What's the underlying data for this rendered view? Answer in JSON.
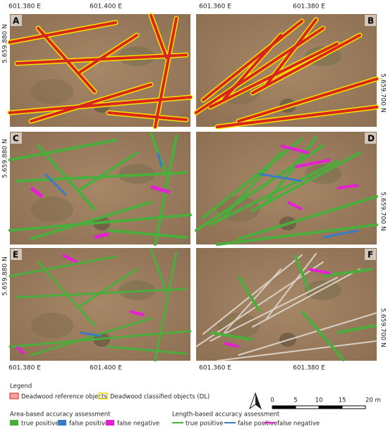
{
  "coordinates": {
    "top": [
      "601.380 E",
      "601.400 E",
      "601.360 E",
      "601.380 E"
    ],
    "bottom": [
      "601.380 E",
      "601.400 E",
      "601.360 E",
      "601.380 E"
    ],
    "left": [
      "5.659.880 N",
      "5.659.880 N",
      "5.659.880 N"
    ],
    "right": [
      "5.659.700 N",
      "5.659.700 N",
      "5.659.700 N"
    ]
  },
  "panels": [
    "A",
    "B",
    "C",
    "D",
    "E",
    "F"
  ],
  "legend": {
    "title": "Legend",
    "reference": "Deadwood reference objects",
    "classified": "Deadwood classified objects (DL)",
    "area": {
      "title": "Area-based accuracy assessment",
      "items": [
        "true positive",
        "false positive",
        "false negative"
      ]
    },
    "length": {
      "title": "Length-based accuracy assessment",
      "items": [
        "true positive",
        "false positive",
        "false negative"
      ]
    }
  },
  "scale_bar": {
    "labels": [
      "0",
      "5",
      "10",
      "15",
      "20 m"
    ]
  }
}
